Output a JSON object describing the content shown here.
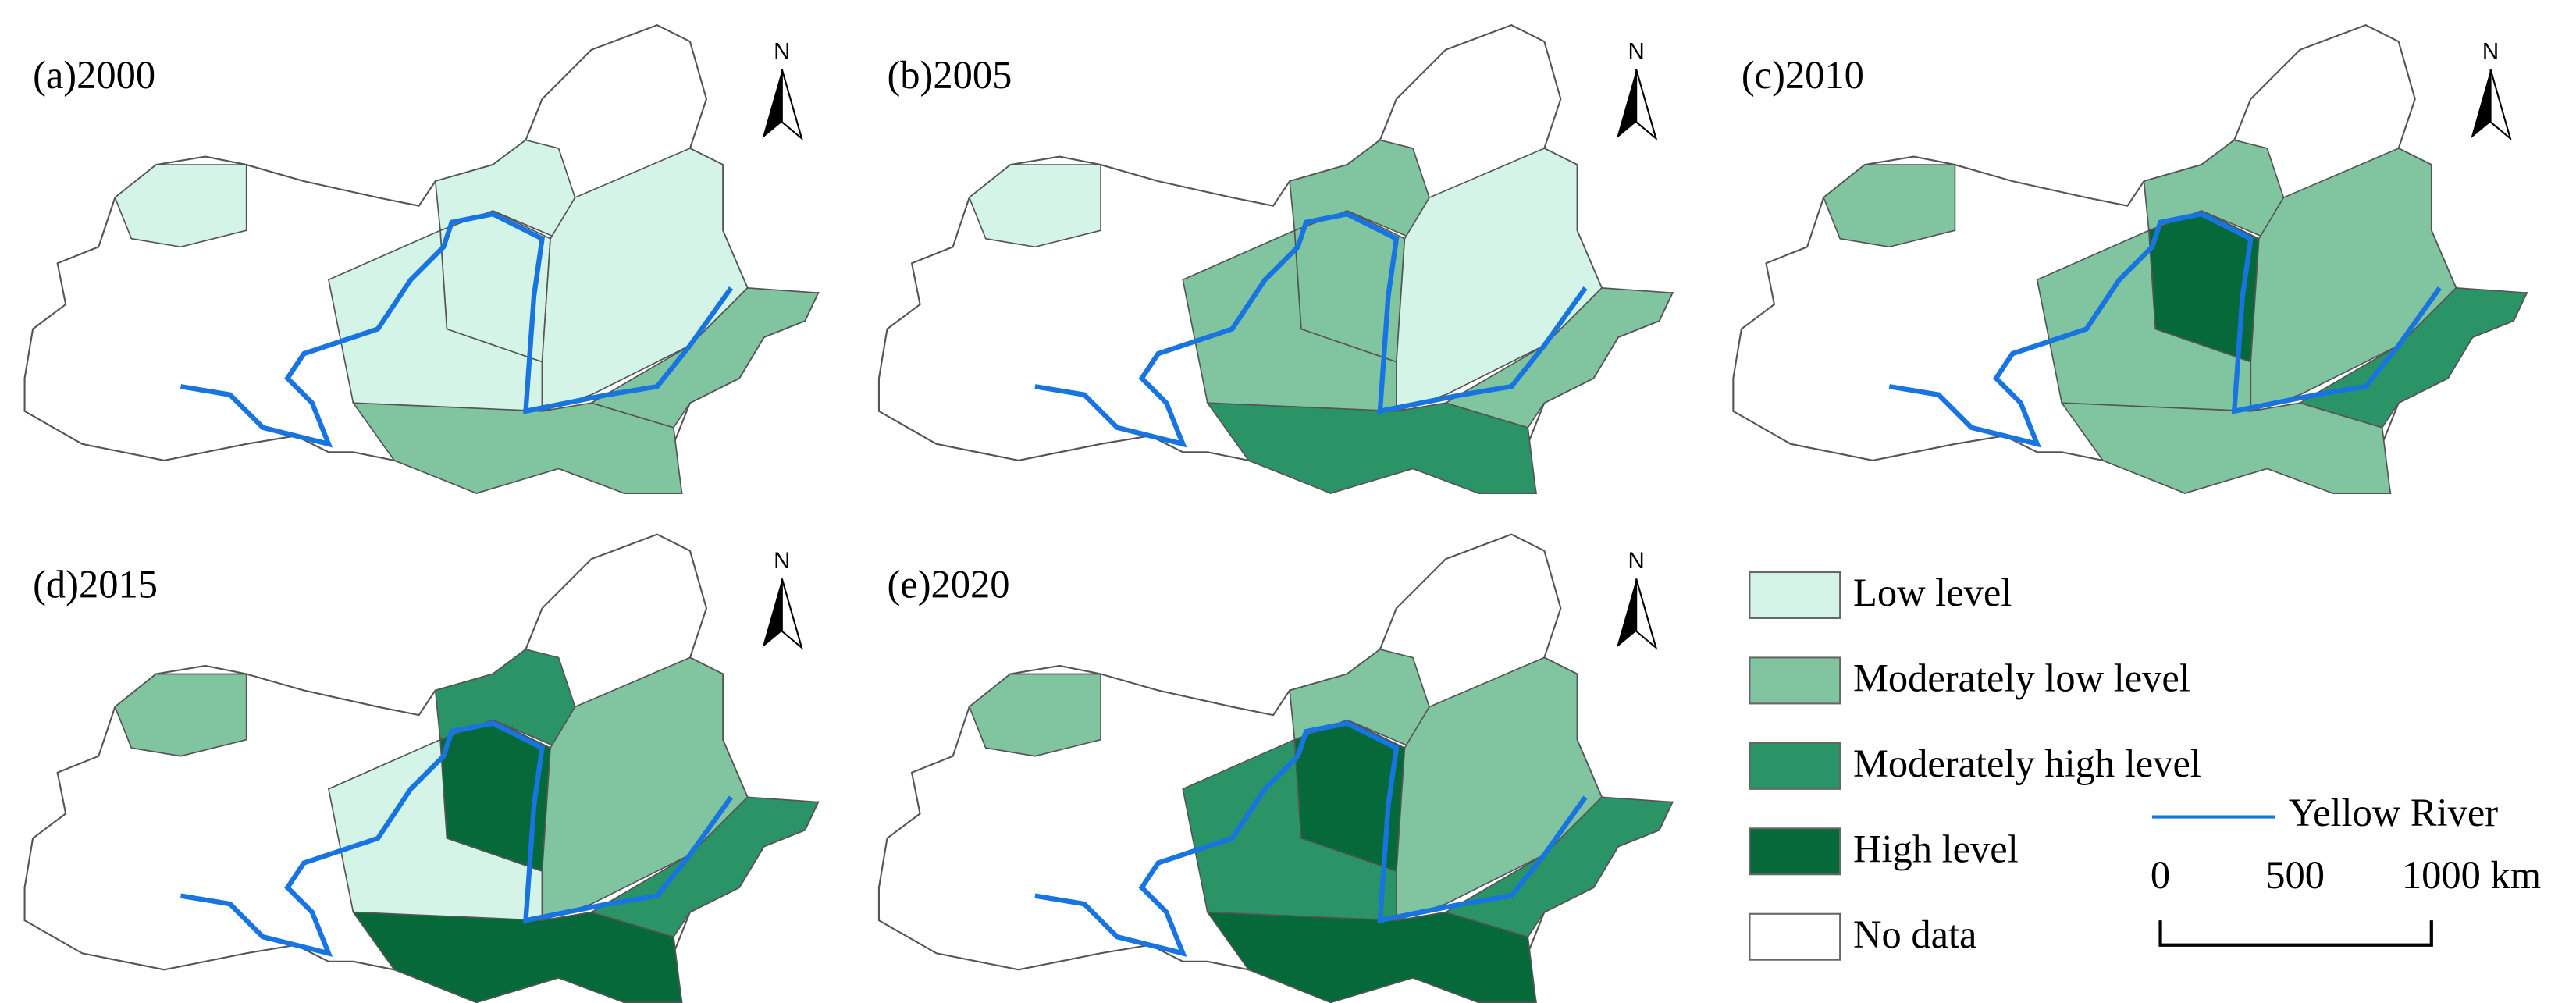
{
  "panels": [
    {
      "label": "(a)2000",
      "north": "N"
    },
    {
      "label": "(b)2005",
      "north": "N"
    },
    {
      "label": "(c)2010",
      "north": "N"
    },
    {
      "label": "(d)2015",
      "north": "N"
    },
    {
      "label": "(e)2020",
      "north": "N"
    }
  ],
  "legend": {
    "items": [
      {
        "label": "Low level",
        "color": "#d4f4e8"
      },
      {
        "label": "Moderately low level",
        "color": "#80c4a0"
      },
      {
        "label": "Moderately high level",
        "color": "#2a9467"
      },
      {
        "label": "High level",
        "color": "#05693a"
      },
      {
        "label": "No data",
        "color": "#ffffff"
      }
    ]
  },
  "river": {
    "label": "Yellow River",
    "color": "#1874e0"
  },
  "scale_bar": {
    "labels": [
      "0",
      "500",
      "1000 km"
    ]
  }
}
